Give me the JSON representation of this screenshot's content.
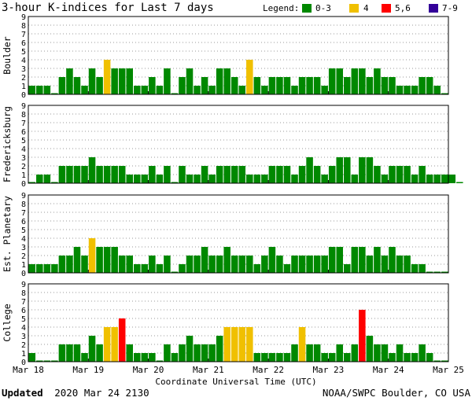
{
  "chart_data": {
    "type": "bar",
    "title": "3-hour K-indices for Last 7 days",
    "legend": {
      "title": "Legend:",
      "entries": [
        {
          "label": "0-3",
          "color": "#008800"
        },
        {
          "label": "4",
          "color": "#f0c000"
        },
        {
          "label": "5,6",
          "color": "#ff0000"
        },
        {
          "label": "7-9",
          "color": "#330099"
        }
      ]
    },
    "xlabel": "Coordinate Universal Time (UTC)",
    "x_tick_labels": [
      "Mar 18",
      "Mar 19",
      "Mar 20",
      "Mar 21",
      "Mar 22",
      "Mar 23",
      "Mar 24",
      "Mar 25"
    ],
    "ylim": [
      0,
      9
    ],
    "y_ticks": [
      0,
      1,
      2,
      3,
      4,
      5,
      6,
      7,
      8,
      9
    ],
    "panels": [
      {
        "name": "Boulder",
        "values": [
          1,
          1,
          1,
          0,
          2,
          3,
          2,
          1,
          3,
          2,
          4,
          3,
          3,
          3,
          1,
          1,
          2,
          1,
          3,
          0,
          2,
          3,
          1,
          2,
          1,
          3,
          3,
          2,
          1,
          4,
          2,
          1,
          2,
          2,
          2,
          1,
          2,
          2,
          2,
          1,
          3,
          3,
          2,
          3,
          3,
          2,
          3,
          2,
          2,
          1,
          1,
          1,
          2,
          2,
          1,
          0
        ]
      },
      {
        "name": "Fredericksburg",
        "values": [
          0,
          1,
          1,
          0,
          2,
          2,
          2,
          2,
          3,
          2,
          2,
          2,
          2,
          1,
          1,
          1,
          2,
          1,
          2,
          0,
          2,
          1,
          1,
          2,
          1,
          2,
          2,
          2,
          2,
          1,
          1,
          1,
          2,
          2,
          2,
          1,
          2,
          3,
          2,
          1,
          2,
          3,
          3,
          1,
          3,
          3,
          2,
          1,
          2,
          2,
          2,
          1,
          2,
          1,
          1,
          1,
          1,
          0
        ]
      },
      {
        "name": "Est. Planetary",
        "values": [
          1,
          1,
          1,
          1,
          2,
          2,
          3,
          2,
          4,
          3,
          3,
          3,
          2,
          2,
          1,
          1,
          2,
          1,
          2,
          0,
          1,
          2,
          2,
          3,
          2,
          2,
          3,
          2,
          2,
          2,
          1,
          2,
          3,
          2,
          1,
          2,
          2,
          2,
          2,
          2,
          3,
          3,
          1,
          3,
          3,
          2,
          3,
          2,
          3,
          2,
          2,
          1,
          1,
          0,
          0,
          0
        ]
      },
      {
        "name": "College",
        "values": [
          1,
          0,
          0,
          0,
          2,
          2,
          2,
          1,
          3,
          2,
          4,
          4,
          5,
          2,
          1,
          1,
          1,
          0,
          2,
          1,
          2,
          3,
          2,
          2,
          2,
          3,
          4,
          4,
          4,
          4,
          1,
          1,
          1,
          1,
          1,
          2,
          4,
          2,
          2,
          1,
          1,
          2,
          1,
          2,
          6,
          3,
          2,
          2,
          1,
          2,
          1,
          1,
          2,
          1,
          0,
          0
        ]
      }
    ]
  },
  "footer": {
    "updated_label": "Updated",
    "updated_value": "2020 Mar 24 2130",
    "source": "NOAA/SWPC Boulder, CO USA"
  }
}
